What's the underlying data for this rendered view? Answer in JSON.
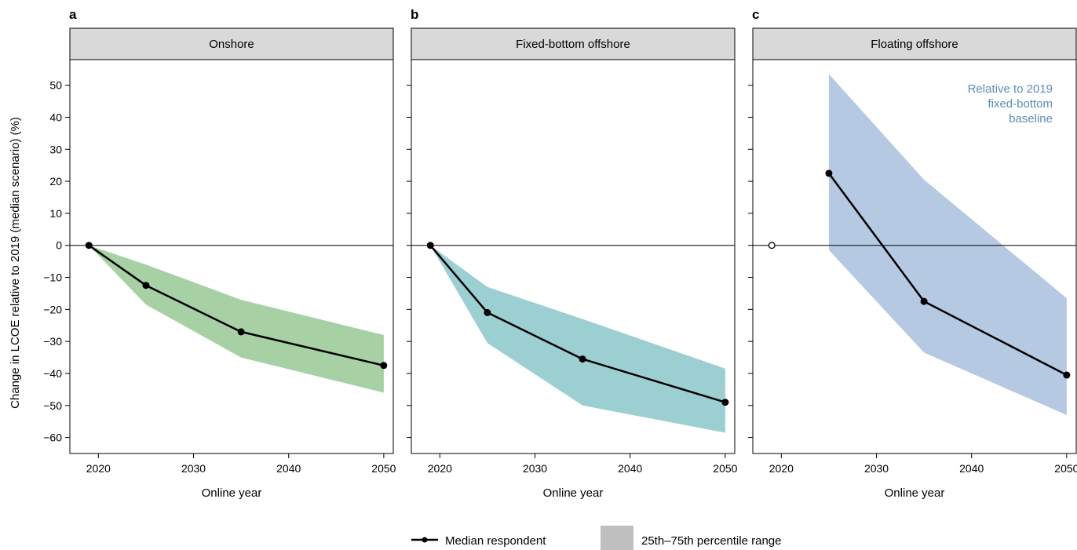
{
  "chart_data": {
    "type": "line",
    "ylabel": "Change in LCOE relative to 2019 (median scenario) (%)",
    "xlabel": "Online year",
    "xlim": [
      2017,
      2051
    ],
    "ylim": [
      -65,
      58
    ],
    "xticks": [
      2020,
      2030,
      2040,
      2050
    ],
    "yticks": [
      50,
      40,
      30,
      20,
      10,
      0,
      -10,
      -20,
      -30,
      -40,
      -50,
      -60
    ],
    "ytick_labels": [
      "50",
      "40",
      "30",
      "20",
      "10",
      "0",
      "−10",
      "−20",
      "−30",
      "−40",
      "−50",
      "−60"
    ],
    "panels": [
      {
        "letter": "a",
        "title": "Onshore",
        "band_color": "#a7d1a4",
        "x": [
          2019,
          2025,
          2035,
          2050
        ],
        "median": [
          0,
          -12.5,
          -27,
          -37.5
        ],
        "p25": [
          0,
          -18.5,
          -35,
          -46
        ],
        "p75": [
          0,
          -6,
          -17,
          -28
        ],
        "open_point": null,
        "annotation": []
      },
      {
        "letter": "b",
        "title": "Fixed-bottom offshore",
        "band_color": "#9ccfd1",
        "x": [
          2019,
          2025,
          2035,
          2050
        ],
        "median": [
          0,
          -21,
          -35.5,
          -49
        ],
        "p25": [
          0,
          -30.5,
          -50,
          -58.5
        ],
        "p75": [
          0,
          -13,
          -23,
          -38.5
        ],
        "open_point": null,
        "annotation": []
      },
      {
        "letter": "c",
        "title": "Floating offshore",
        "band_color": "#b5cae2",
        "x": [
          2025,
          2035,
          2050
        ],
        "median": [
          22.5,
          -17.5,
          -40.5
        ],
        "p25": [
          -1.5,
          -33.5,
          -53
        ],
        "p75": [
          53.5,
          20.5,
          -16.5
        ],
        "open_point": {
          "x": 2019,
          "y": 0
        },
        "annotation": [
          "Relative to 2019",
          "fixed-bottom",
          "baseline"
        ],
        "annotation_color": "#5b8db8"
      }
    ],
    "legend": {
      "placement": "bottom-center",
      "median_label": "Median respondent",
      "range_label": "25th–75th percentile range",
      "range_swatch_color": "#bfbfbf"
    }
  }
}
